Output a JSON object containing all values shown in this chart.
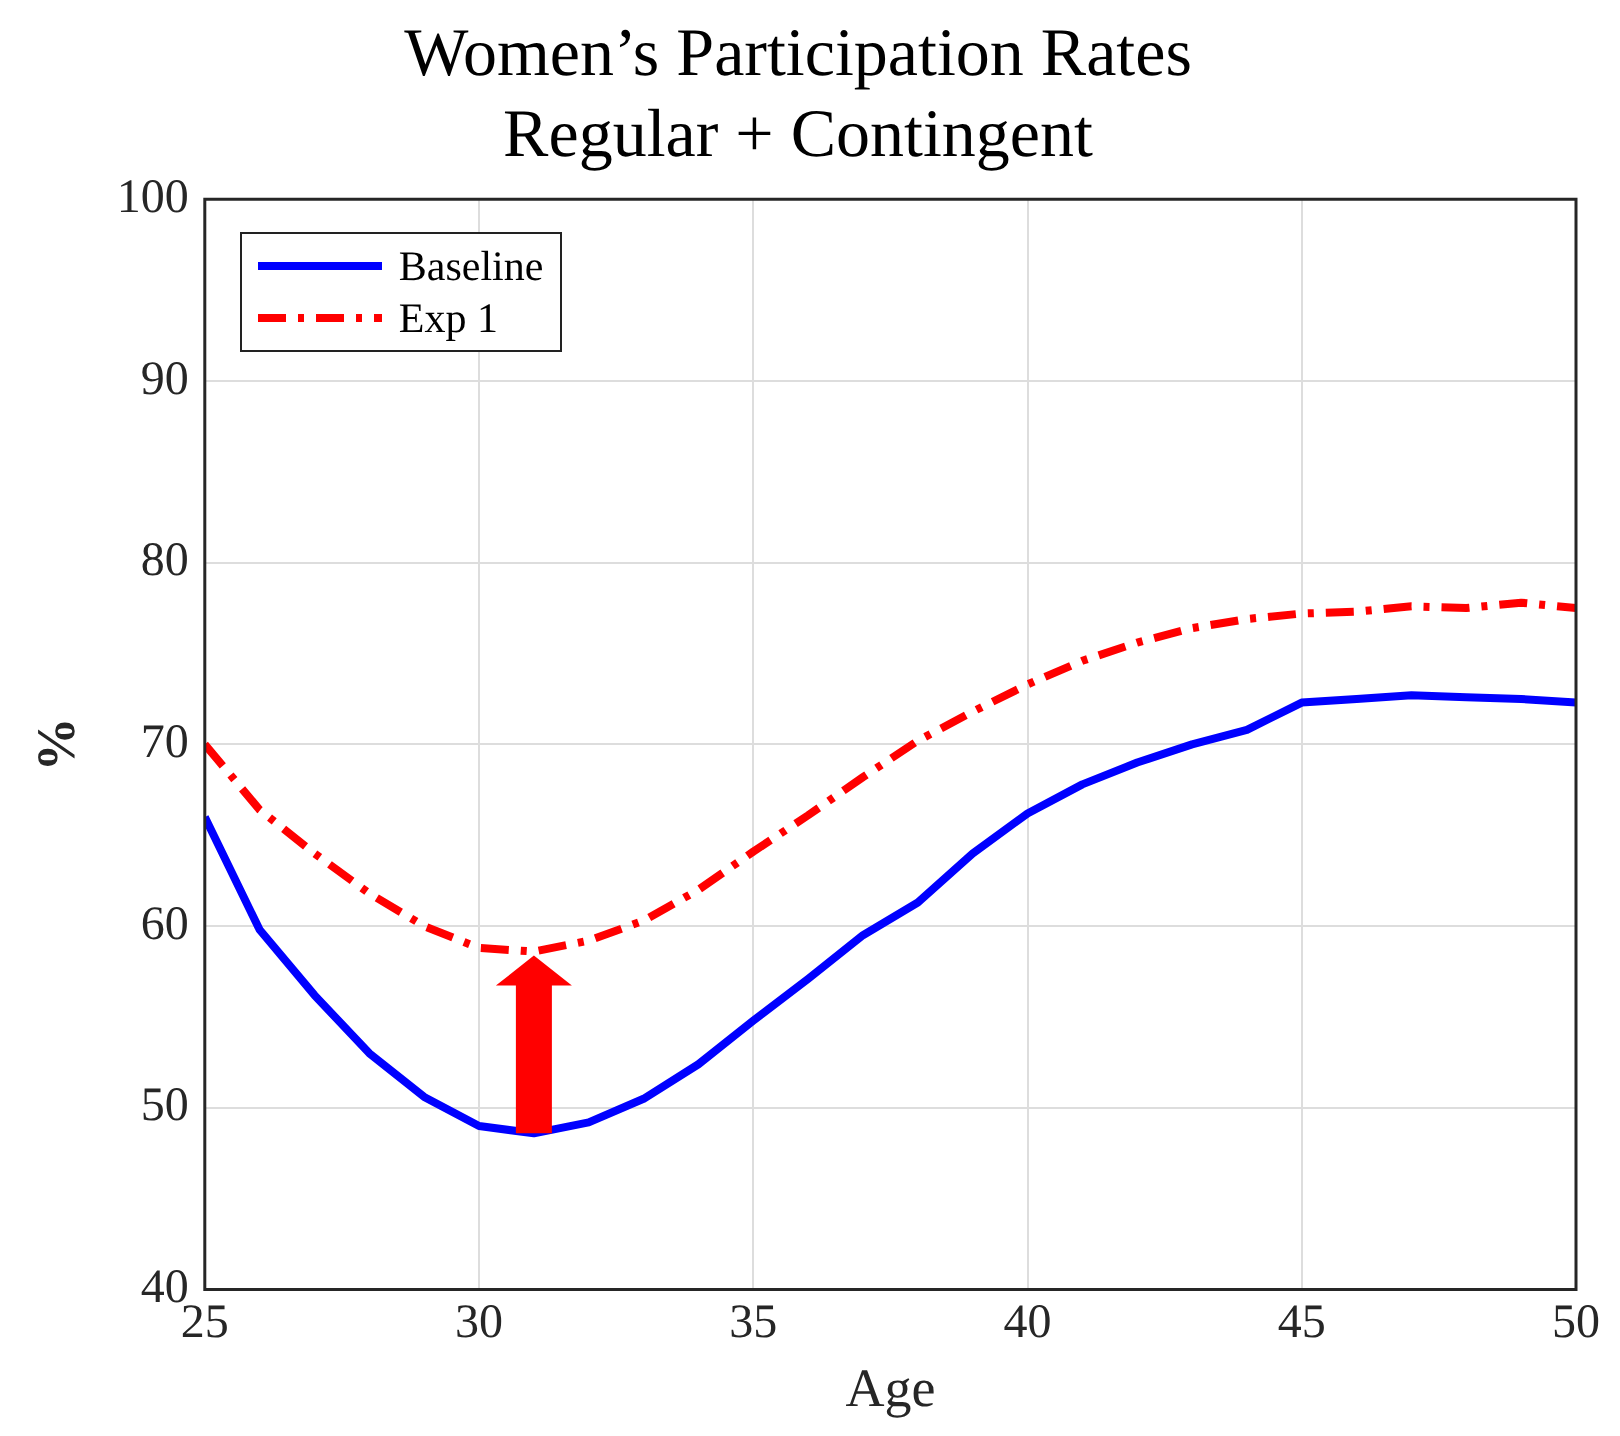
{
  "chart_data": {
    "type": "line",
    "title": "Women’s Participation Rates",
    "subtitle": "Regular + Contingent",
    "xlabel": "Age",
    "ylabel": "%",
    "x": [
      25,
      26,
      27,
      28,
      29,
      30,
      31,
      32,
      33,
      34,
      35,
      36,
      37,
      38,
      39,
      40,
      41,
      42,
      43,
      44,
      45,
      46,
      47,
      48,
      49,
      50
    ],
    "series": [
      {
        "name": "Baseline",
        "color": "#0000ff",
        "line_style": "solid",
        "values": [
          66,
          59.8,
          56.2,
          53,
          50.6,
          49,
          48.6,
          49.2,
          50.5,
          52.4,
          54.8,
          57.1,
          59.5,
          61.3,
          64,
          66.2,
          67.8,
          69,
          70,
          70.8,
          72.3,
          72.5,
          72.7,
          72.6,
          72.5,
          72.3
        ]
      },
      {
        "name": "Exp 1",
        "color": "#ff0000",
        "line_style": "dashed",
        "values": [
          70,
          66.4,
          64,
          61.8,
          60,
          58.8,
          58.6,
          59.2,
          60.3,
          62,
          64.1,
          66.1,
          68.2,
          70.2,
          71.8,
          73.3,
          74.6,
          75.6,
          76.4,
          76.9,
          77.2,
          77.3,
          77.6,
          77.5,
          77.8,
          77.5
        ]
      }
    ],
    "xlim": [
      25,
      50
    ],
    "xticks": [
      25,
      30,
      35,
      40,
      45,
      50
    ],
    "ylim": [
      40,
      100
    ],
    "yticks": [
      40,
      50,
      60,
      70,
      80,
      90,
      100
    ],
    "grid": true,
    "legend": "top left",
    "marker": "none"
  }
}
